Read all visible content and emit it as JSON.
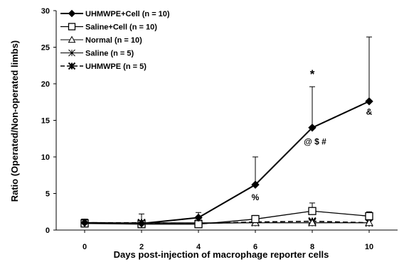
{
  "chart_data": {
    "type": "line",
    "x": [
      0,
      2,
      4,
      6,
      8,
      10
    ],
    "xticks": [
      "0",
      "2",
      "4",
      "6",
      "8",
      "10"
    ],
    "yticks": [
      "0",
      "5",
      "10",
      "15",
      "20",
      "25",
      "30"
    ],
    "xlabel": "Days post-injection  of macrophage  reporter cells",
    "ylabel": "Ratio (Operated/Non-operated limbs)",
    "title": "",
    "xlim": [
      -1,
      11
    ],
    "ylim": [
      0,
      30
    ],
    "grid": false,
    "legend_position": "top-left",
    "series": [
      {
        "name": "UHMWPE+Cell (n = 10)",
        "marker": "diamond-filled",
        "line": "solid",
        "width": 2,
        "values": [
          1.0,
          0.9,
          1.7,
          6.2,
          14.0,
          17.6
        ],
        "err_up": [
          0.5,
          1.3,
          0.7,
          3.8,
          5.6,
          8.8
        ]
      },
      {
        "name": "Saline+Cell (n = 10)",
        "marker": "square-open",
        "line": "solid",
        "width": 1.3,
        "values": [
          0.9,
          0.8,
          0.8,
          1.5,
          2.6,
          1.9
        ],
        "err_up": [
          0.4,
          0.4,
          0.4,
          0.5,
          1.1,
          0.6
        ]
      },
      {
        "name": "Normal (n = 10)",
        "marker": "triangle-open",
        "line": "solid",
        "width": 1,
        "values": [
          1.0,
          1.0,
          1.0,
          1.0,
          1.0,
          1.0
        ],
        "err_up": [
          0,
          0,
          0,
          0,
          0,
          0
        ]
      },
      {
        "name": "Saline (n = 5)",
        "marker": "asterisk",
        "line": "solid",
        "width": 1,
        "values": [
          1.0,
          0.9,
          0.9,
          1.0,
          1.0,
          1.0
        ],
        "err_up": [
          0,
          0,
          0,
          0,
          0,
          0
        ]
      },
      {
        "name": "UHMWPE (n = 5)",
        "marker": "x-star",
        "line": "dashed",
        "width": 1.6,
        "values": [
          1.0,
          1.0,
          0.9,
          1.1,
          1.2,
          1.0
        ],
        "err_up": [
          0,
          0,
          0,
          0,
          0,
          0
        ]
      }
    ],
    "annotations": [
      {
        "text": "*",
        "x": 8,
        "y": 20.8,
        "size": "big"
      },
      {
        "text": "@ $ #",
        "x": 8,
        "y": 11.7,
        "size": "normal"
      },
      {
        "text": "%",
        "x": 6,
        "y": 4.1,
        "size": "normal"
      },
      {
        "text": "&",
        "x": 10,
        "y": 15.8,
        "size": "normal"
      }
    ]
  }
}
